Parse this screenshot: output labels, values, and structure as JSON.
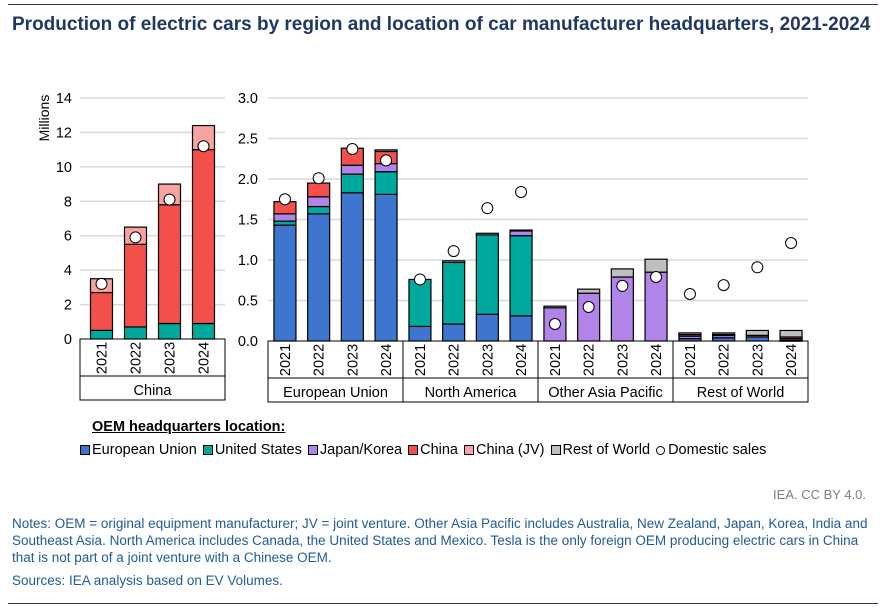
{
  "title": "Production of electric cars by region and location of car manufacturer headquarters, 2021-2024",
  "legend": {
    "title": "OEM headquarters location:",
    "items": [
      {
        "label": "European Union",
        "color": "#3E75CF"
      },
      {
        "label": "United States",
        "color": "#00A99D"
      },
      {
        "label": "Japan/Korea",
        "color": "#B084E8"
      },
      {
        "label": "China",
        "color": "#F4504B"
      },
      {
        "label": "China (JV)",
        "color": "#F7A3A0"
      },
      {
        "label": "Rest of World",
        "color": "#BFBFBF"
      }
    ],
    "domestic_label": "Domestic sales"
  },
  "credit": "IEA. CC BY 4.0.",
  "notes": "Notes: OEM = original equipment manufacturer; JV = joint venture. Other Asia Pacific includes Australia, New Zealand, Japan, Korea, India and Southeast Asia. North America includes Canada, the United States and Mexico. Tesla is the only foreign OEM producing electric cars in China that is not part of a joint venture with a Chinese OEM.",
  "sources": "Sources: IEA analysis based on EV Volumes.",
  "chart_data": [
    {
      "type": "bar",
      "stacked": true,
      "ylabel": "Millions",
      "ylim": [
        0,
        14
      ],
      "yticks": [
        "0",
        "2",
        "4",
        "6",
        "8",
        "10",
        "12",
        "14"
      ],
      "grid": true,
      "series_order": [
        "European Union",
        "United States",
        "Japan/Korea",
        "China",
        "China (JV)",
        "Rest of World"
      ],
      "groups": [
        {
          "label": "China",
          "bars": [
            {
              "year": "2021",
              "values": [
                0,
                0.5,
                0,
                2.2,
                0.8,
                0
              ],
              "domestic": 3.2
            },
            {
              "year": "2022",
              "values": [
                0,
                0.7,
                0,
                4.8,
                1.0,
                0
              ],
              "domestic": 5.9
            },
            {
              "year": "2023",
              "values": [
                0,
                0.9,
                0,
                6.9,
                1.2,
                0
              ],
              "domestic": 8.1
            },
            {
              "year": "2024",
              "values": [
                0,
                0.9,
                0,
                10.1,
                1.4,
                0
              ],
              "domestic": 11.2
            }
          ]
        }
      ]
    },
    {
      "type": "bar",
      "stacked": true,
      "ylim": [
        0,
        3.0
      ],
      "yticks": [
        "0.0",
        "0.5",
        "1.0",
        "1.5",
        "2.0",
        "2.5",
        "3.0"
      ],
      "grid": true,
      "series_order": [
        "European Union",
        "United States",
        "Japan/Korea",
        "China",
        "China (JV)",
        "Rest of World"
      ],
      "groups": [
        {
          "label": "European Union",
          "bars": [
            {
              "year": "2021",
              "values": [
                1.43,
                0.05,
                0.09,
                0.15,
                0,
                0
              ],
              "domestic": 1.75
            },
            {
              "year": "2022",
              "values": [
                1.57,
                0.09,
                0.12,
                0.17,
                0,
                0
              ],
              "domestic": 2.01
            },
            {
              "year": "2023",
              "values": [
                1.83,
                0.23,
                0.11,
                0.21,
                0,
                0
              ],
              "domestic": 2.37
            },
            {
              "year": "2024",
              "values": [
                1.81,
                0.28,
                0.1,
                0.15,
                0,
                0.02
              ],
              "domestic": 2.23
            }
          ]
        },
        {
          "label": "North America",
          "bars": [
            {
              "year": "2021",
              "values": [
                0.18,
                0.58,
                0,
                0,
                0,
                0
              ],
              "domestic": 0.76
            },
            {
              "year": "2022",
              "values": [
                0.21,
                0.76,
                0,
                0,
                0,
                0.02
              ],
              "domestic": 1.11
            },
            {
              "year": "2023",
              "values": [
                0.33,
                0.98,
                0,
                0,
                0,
                0.02
              ],
              "domestic": 1.64
            },
            {
              "year": "2024",
              "values": [
                0.31,
                0.99,
                0.06,
                0,
                0,
                0.01
              ],
              "domestic": 1.84
            }
          ]
        },
        {
          "label": "Other Asia Pacific",
          "bars": [
            {
              "year": "2021",
              "values": [
                0,
                0,
                0.41,
                0,
                0,
                0.02
              ],
              "domestic": 0.21
            },
            {
              "year": "2022",
              "values": [
                0,
                0,
                0.59,
                0,
                0,
                0.05
              ],
              "domestic": 0.42
            },
            {
              "year": "2023",
              "values": [
                0,
                0,
                0.79,
                0,
                0,
                0.1
              ],
              "domestic": 0.68
            },
            {
              "year": "2024",
              "values": [
                0,
                0,
                0.85,
                0,
                0,
                0.16
              ],
              "domestic": 0.79
            }
          ]
        },
        {
          "label": "Rest of World",
          "bars": [
            {
              "year": "2021",
              "values": [
                0.03,
                0,
                0.03,
                0.02,
                0,
                0.02
              ],
              "domestic": 0.58
            },
            {
              "year": "2022",
              "values": [
                0.04,
                0,
                0.03,
                0.01,
                0,
                0.02
              ],
              "domestic": 0.69
            },
            {
              "year": "2023",
              "values": [
                0.05,
                0,
                0,
                0.02,
                0,
                0.06
              ],
              "domestic": 0.91
            },
            {
              "year": "2024",
              "values": [
                0.01,
                0,
                0.02,
                0.02,
                0,
                0.08
              ],
              "domestic": 1.21
            }
          ]
        }
      ]
    }
  ]
}
